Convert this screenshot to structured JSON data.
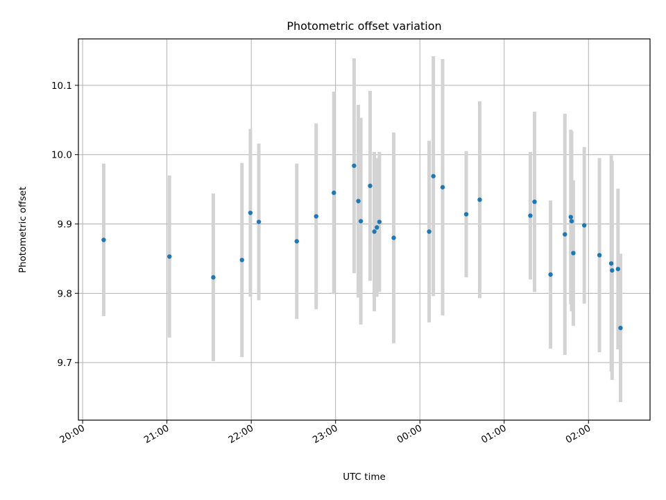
{
  "chart_data": {
    "type": "scatter",
    "title": "Photometric offset variation",
    "xlabel": "UTC time",
    "ylabel": "Photometric offset",
    "xlim": [
      -0.05,
      6.73
    ],
    "ylim": [
      9.617,
      10.167
    ],
    "grid": true,
    "x_tick_values": [
      0,
      1,
      2,
      3,
      4,
      5,
      6
    ],
    "x_tick_labels": [
      "20:00",
      "21:00",
      "22:00",
      "23:00",
      "00:00",
      "01:00",
      "02:00"
    ],
    "y_tick_values": [
      9.7,
      9.8,
      9.9,
      10.0,
      10.1
    ],
    "y_tick_labels": [
      "9.7",
      "9.8",
      "9.9",
      "10.0",
      "10.1"
    ],
    "x_unit_note": "hours after 20:00 UTC",
    "marker_color": "#1f77b4",
    "errorbar_color": "#d3d3d3",
    "points": [
      {
        "x": 0.25,
        "y": 9.877,
        "err": 0.11
      },
      {
        "x": 1.03,
        "y": 9.853,
        "err": 0.117
      },
      {
        "x": 1.55,
        "y": 9.823,
        "err": 0.121
      },
      {
        "x": 1.89,
        "y": 9.848,
        "err": 0.14
      },
      {
        "x": 1.99,
        "y": 9.916,
        "err": 0.121
      },
      {
        "x": 2.09,
        "y": 9.903,
        "err": 0.113
      },
      {
        "x": 2.54,
        "y": 9.875,
        "err": 0.112
      },
      {
        "x": 2.77,
        "y": 9.911,
        "err": 0.134
      },
      {
        "x": 2.98,
        "y": 9.945,
        "err": 0.146
      },
      {
        "x": 3.22,
        "y": 9.984,
        "err": 0.155
      },
      {
        "x": 3.27,
        "y": 9.933,
        "err": 0.139
      },
      {
        "x": 3.3,
        "y": 9.904,
        "err": 0.149
      },
      {
        "x": 3.41,
        "y": 9.955,
        "err": 0.137
      },
      {
        "x": 3.46,
        "y": 9.889,
        "err": 0.115
      },
      {
        "x": 3.49,
        "y": 9.895,
        "err": 0.1
      },
      {
        "x": 3.52,
        "y": 9.903,
        "err": 0.101
      },
      {
        "x": 3.69,
        "y": 9.88,
        "err": 0.152
      },
      {
        "x": 4.11,
        "y": 9.889,
        "err": 0.131
      },
      {
        "x": 4.16,
        "y": 9.969,
        "err": 0.173
      },
      {
        "x": 4.27,
        "y": 9.953,
        "err": 0.185
      },
      {
        "x": 4.55,
        "y": 9.914,
        "err": 0.091
      },
      {
        "x": 4.71,
        "y": 9.935,
        "err": 0.142
      },
      {
        "x": 5.31,
        "y": 9.912,
        "err": 0.092
      },
      {
        "x": 5.36,
        "y": 9.932,
        "err": 0.13
      },
      {
        "x": 5.55,
        "y": 9.827,
        "err": 0.107
      },
      {
        "x": 5.72,
        "y": 9.885,
        "err": 0.174
      },
      {
        "x": 5.79,
        "y": 9.91,
        "err": 0.126
      },
      {
        "x": 5.8,
        "y": 9.904,
        "err": 0.13
      },
      {
        "x": 5.82,
        "y": 9.858,
        "err": 0.105
      },
      {
        "x": 5.95,
        "y": 9.898,
        "err": 0.113
      },
      {
        "x": 6.13,
        "y": 9.855,
        "err": 0.14
      },
      {
        "x": 6.27,
        "y": 9.843,
        "err": 0.156
      },
      {
        "x": 6.28,
        "y": 9.833,
        "err": 0.158
      },
      {
        "x": 6.35,
        "y": 9.835,
        "err": 0.116
      },
      {
        "x": 6.38,
        "y": 9.75,
        "err": 0.107
      }
    ]
  }
}
